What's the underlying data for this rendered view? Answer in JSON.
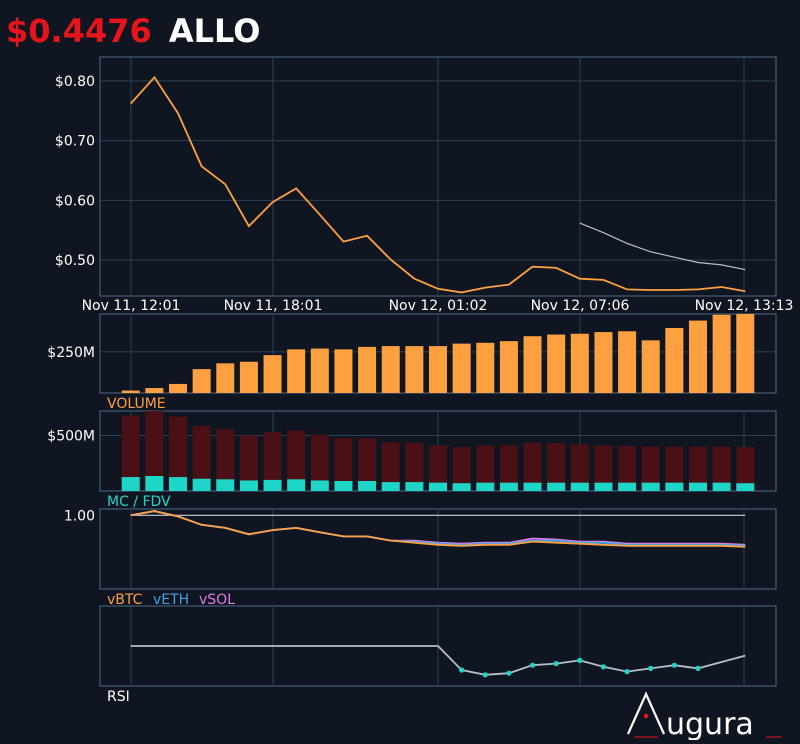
{
  "header": {
    "price": "$0.4476",
    "symbol": "ALLO"
  },
  "colors": {
    "background": "#0f1621",
    "price_red": "#e8141b",
    "orange": "#ffa040",
    "teal": "#1ed6c8",
    "dark_red": "#4a1015",
    "blue": "#3aa6e8",
    "pink": "#e37be8",
    "grey": "#b6bfc8",
    "frame": "#4c6a85",
    "grid": "#2b4257"
  },
  "logo": {
    "text": "Augura"
  },
  "chart_data": [
    {
      "type": "line",
      "panel": "price",
      "xlabels": [
        "Nov 11, 12:01",
        "Nov 11, 18:01",
        "Nov 12, 01:02",
        "Nov 12, 07:06",
        "Nov 12, 13:13"
      ],
      "yticks": [
        "$0.80",
        "$0.70",
        "$0.60",
        "$0.50"
      ],
      "ytick_values": [
        0.8,
        0.7,
        0.6,
        0.5
      ],
      "ylim": [
        0.44,
        0.84
      ],
      "xlim": [
        -1.3,
        27.3
      ],
      "grid": true,
      "series": [
        {
          "values": [
            0.762,
            0.806,
            0.746,
            0.657,
            0.627,
            0.557,
            0.597,
            0.62,
            0.576,
            0.531,
            0.541,
            0.501,
            0.469,
            0.452,
            0.446,
            0.454,
            0.459,
            0.489,
            0.487,
            0.469,
            0.467,
            0.451,
            0.45,
            0.45,
            0.451,
            0.455,
            0.448
          ]
        },
        {
          "x_start": 19,
          "values": [
            0.562,
            0.546,
            0.528,
            0.514,
            0.505,
            0.496,
            0.492,
            0.484
          ]
        }
      ]
    },
    {
      "type": "bar",
      "panel": "volume",
      "label": "VOLUME",
      "yticks": [
        "$250M"
      ],
      "ytick_values": [
        250
      ],
      "ylim": [
        0,
        480
      ],
      "values": [
        15,
        30,
        55,
        145,
        180,
        190,
        230,
        265,
        270,
        265,
        280,
        285,
        285,
        285,
        300,
        305,
        315,
        345,
        355,
        360,
        370,
        375,
        320,
        395,
        440,
        475,
        480
      ]
    },
    {
      "type": "bar",
      "panel": "mc_fdv",
      "label": "MC / FDV",
      "yticks": [
        "$500M"
      ],
      "ytick_values": [
        500
      ],
      "ylim": [
        0,
        720
      ],
      "fdv_values": [
        680,
        720,
        670,
        585,
        555,
        500,
        530,
        545,
        505,
        475,
        475,
        440,
        435,
        410,
        395,
        410,
        410,
        435,
        430,
        420,
        410,
        405,
        400,
        400,
        400,
        400,
        395
      ],
      "mc_values": [
        125,
        135,
        125,
        110,
        105,
        95,
        100,
        105,
        95,
        90,
        90,
        80,
        80,
        75,
        70,
        75,
        75,
        75,
        75,
        75,
        75,
        75,
        75,
        75,
        75,
        75,
        70
      ]
    },
    {
      "type": "line",
      "panel": "relative",
      "yticks": [
        "1.00"
      ],
      "ytick_values": [
        1.0
      ],
      "ylim": [
        0.3,
        1.06
      ],
      "legend": [
        "vBTC",
        "vETH",
        "vSOL"
      ],
      "series": [
        {
          "name": "vSOL",
          "values": [
            1.0,
            1.04,
            0.99,
            0.91,
            0.88,
            0.82,
            0.86,
            0.88,
            0.84,
            0.8,
            0.8,
            0.76,
            0.76,
            0.74,
            0.73,
            0.74,
            0.74,
            0.78,
            0.77,
            0.75,
            0.75,
            0.73,
            0.73,
            0.73,
            0.73,
            0.73,
            0.72
          ]
        },
        {
          "name": "vETH",
          "values": [
            1.0,
            1.04,
            0.99,
            0.91,
            0.88,
            0.82,
            0.86,
            0.88,
            0.84,
            0.8,
            0.8,
            0.76,
            0.75,
            0.73,
            0.72,
            0.73,
            0.73,
            0.76,
            0.76,
            0.74,
            0.74,
            0.72,
            0.72,
            0.72,
            0.72,
            0.72,
            0.71
          ]
        },
        {
          "name": "vBTC",
          "values": [
            1.0,
            1.04,
            0.99,
            0.91,
            0.88,
            0.82,
            0.86,
            0.88,
            0.84,
            0.8,
            0.8,
            0.76,
            0.74,
            0.72,
            0.71,
            0.72,
            0.72,
            0.75,
            0.74,
            0.73,
            0.72,
            0.71,
            0.71,
            0.71,
            0.71,
            0.71,
            0.7
          ]
        }
      ]
    },
    {
      "type": "line",
      "panel": "rsi",
      "label": "RSI",
      "ylim": [
        20,
        70
      ],
      "values": [
        45,
        45,
        45,
        45,
        45,
        45,
        45,
        45,
        45,
        45,
        45,
        45,
        45,
        45,
        30,
        27,
        28,
        33,
        34,
        36,
        32,
        29,
        31,
        33,
        31,
        35,
        39
      ],
      "highlight_indices": [
        14,
        15,
        16,
        17,
        18,
        19,
        20,
        21,
        22,
        23,
        24
      ]
    }
  ]
}
